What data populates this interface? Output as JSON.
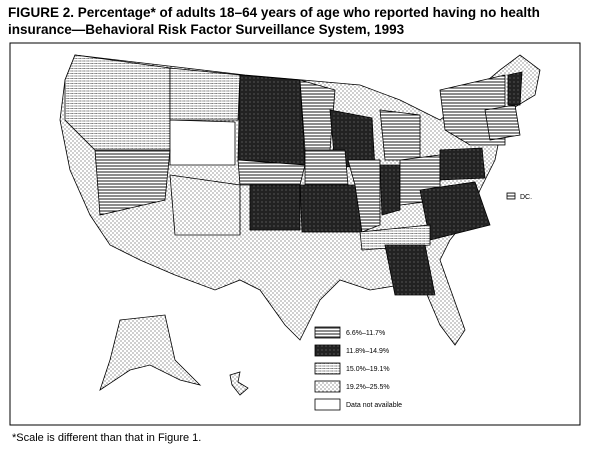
{
  "figure": {
    "title_lines": [
      "FIGURE 2. Percentage* of adults 18–64 years of age who reported having no health",
      "insurance—Behavioral Risk Factor Surveillance System, 1993"
    ],
    "legend": [
      "6.6%–11.7%",
      "11.8%–14.9%",
      "15.0%–19.1%",
      "19.2%–25.5%",
      "Data not available"
    ],
    "dc_label": "DC.",
    "footnote": "*Scale is different than that in Figure 1."
  }
}
